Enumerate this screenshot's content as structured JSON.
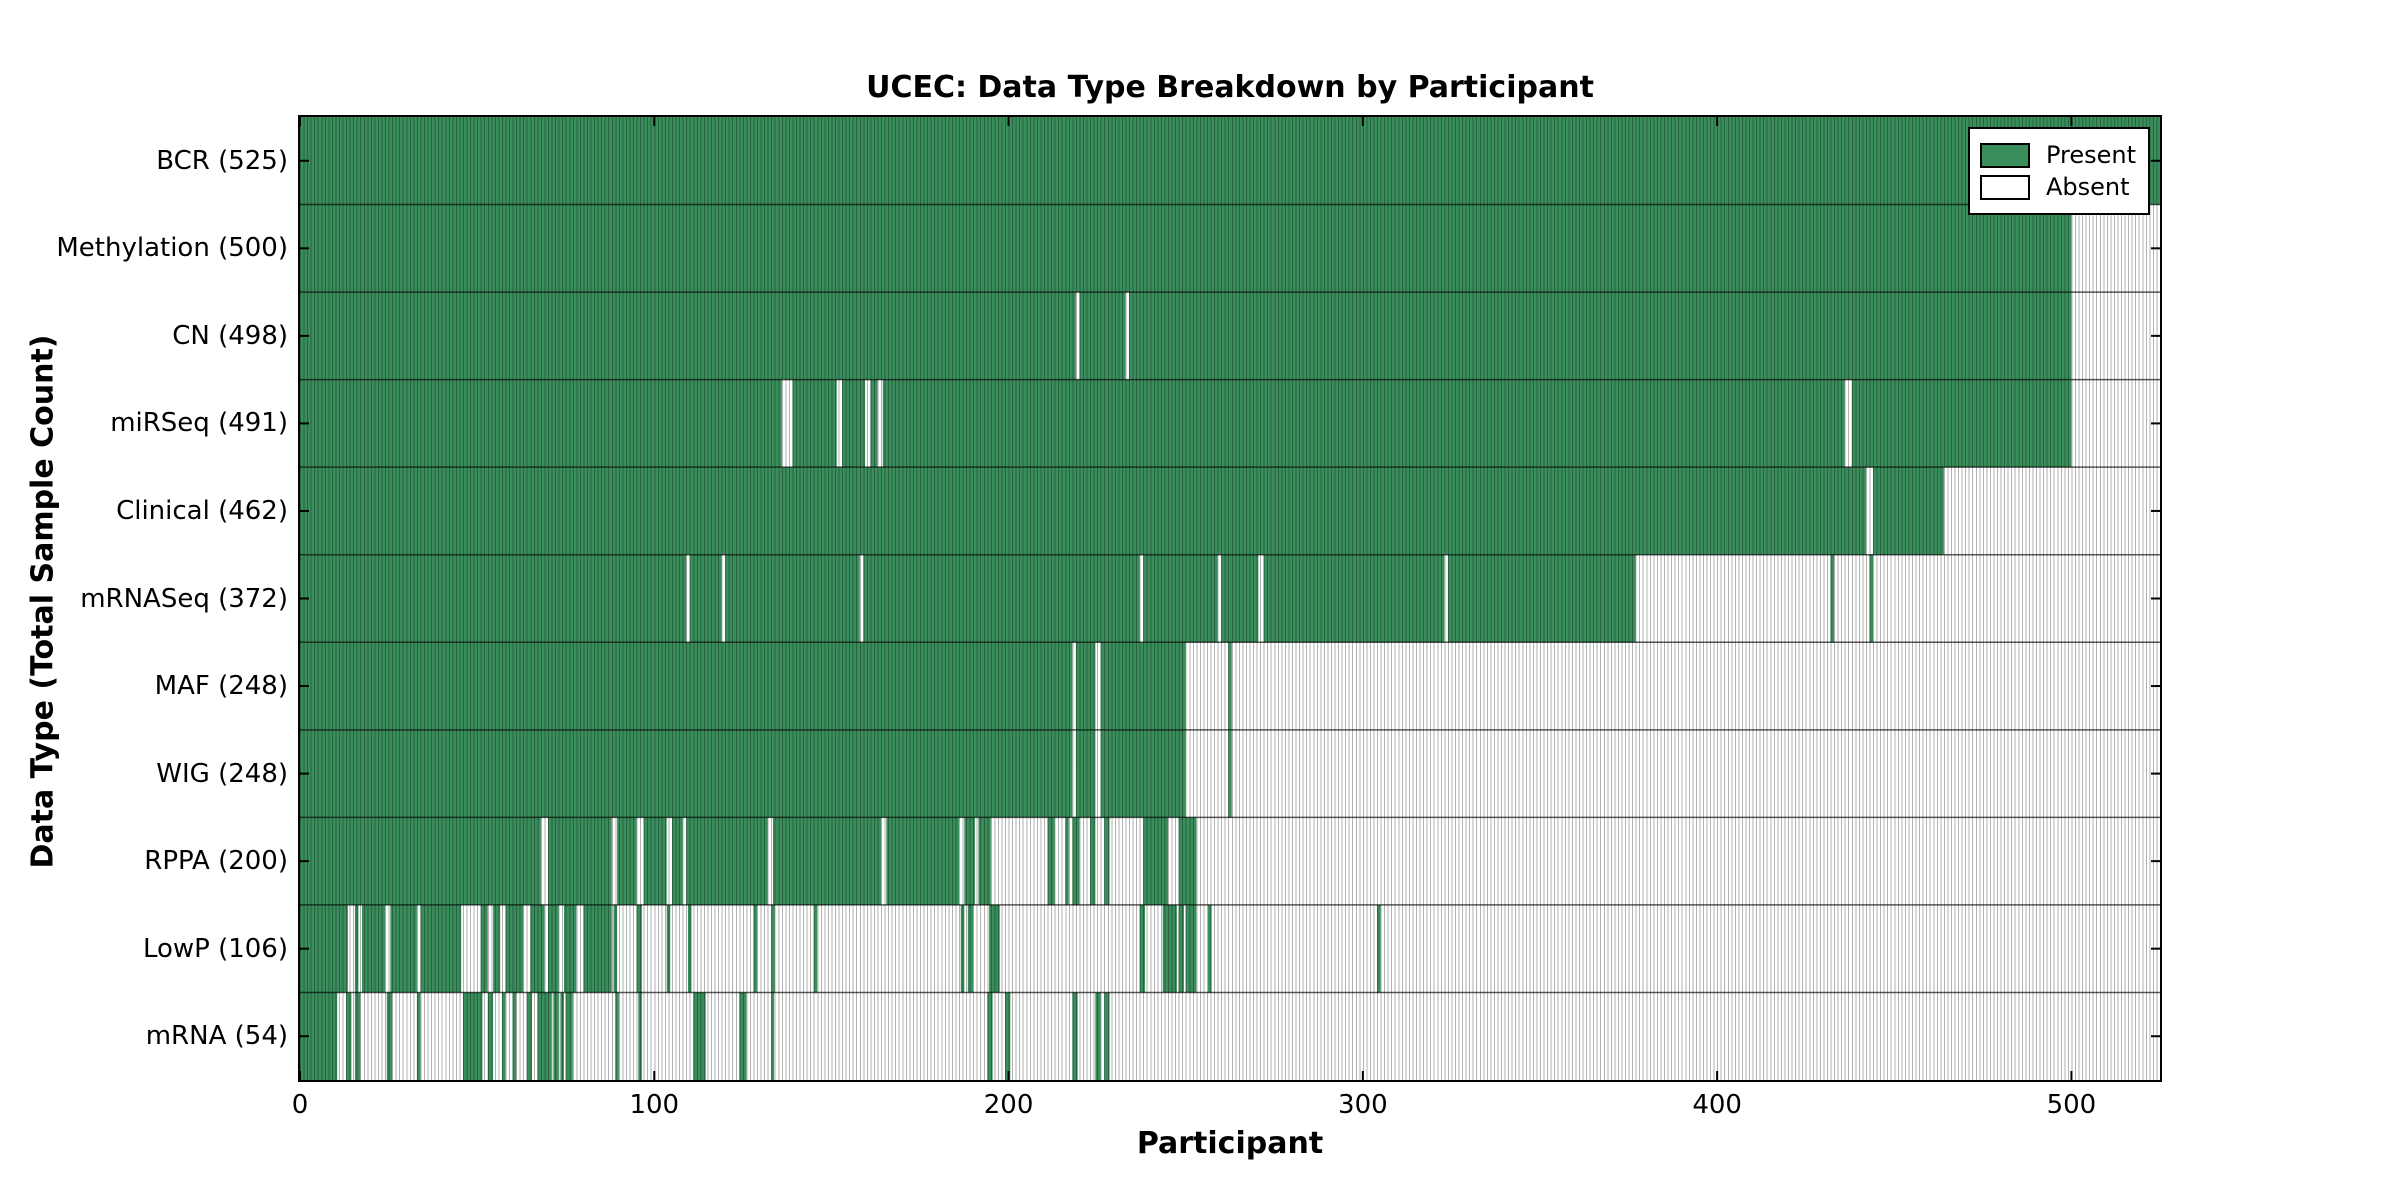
{
  "title": "UCEC: Data Type Breakdown by Participant",
  "xlabel": "Participant",
  "ylabel": "Data Type (Total Sample Count)",
  "legend": {
    "present_label": "Present",
    "absent_label": "Absent"
  },
  "colors": {
    "present": "#3a8e5c",
    "absent": "#ffffff",
    "stripe_line": "rgba(0,0,0,0.30)",
    "row_separator": "rgba(0,0,0,0.65)",
    "axis_border": "#000000",
    "tick": "#000000"
  },
  "chart_data": {
    "type": "heatmap",
    "subtype": "presence-absence-matrix",
    "title": "UCEC: Data Type Breakdown by Participant",
    "xlabel": "Participant",
    "ylabel": "Data Type (Total Sample Count)",
    "x_axis": {
      "range": [
        0,
        525
      ],
      "ticks": [
        0,
        100,
        200,
        300,
        400,
        500
      ]
    },
    "legend_entries": [
      {
        "label": "Present",
        "color": "#3a8e5c"
      },
      {
        "label": "Absent",
        "color": "#ffffff"
      }
    ],
    "legend_position": "upper right",
    "grid": false,
    "rows": [
      {
        "label": "BCR (525)",
        "name": "BCR",
        "count": 525,
        "present_ranges": [
          [
            0,
            525
          ]
        ]
      },
      {
        "label": "Methylation (500)",
        "name": "Methylation",
        "count": 500,
        "present_ranges": [
          [
            0,
            500
          ]
        ]
      },
      {
        "label": "CN (498)",
        "name": "CN",
        "count": 498,
        "present_ranges": [
          [
            0,
            219
          ],
          [
            220,
            233
          ],
          [
            234,
            500
          ]
        ]
      },
      {
        "label": "miRSeq (491)",
        "name": "miRSeq",
        "count": 491,
        "present_ranges": [
          [
            0,
            136
          ],
          [
            139,
            151.5
          ],
          [
            153,
            159.5
          ],
          [
            161,
            163
          ],
          [
            164.5,
            436
          ],
          [
            438,
            500
          ]
        ]
      },
      {
        "label": "Clinical (462)",
        "name": "Clinical",
        "count": 462,
        "present_ranges": [
          [
            0,
            442
          ],
          [
            444,
            464
          ]
        ]
      },
      {
        "label": "mRNASeq (372)",
        "name": "mRNASeq",
        "count": 372,
        "present_ranges": [
          [
            0,
            109
          ],
          [
            110,
            119
          ],
          [
            120,
            158
          ],
          [
            159,
            237
          ],
          [
            238,
            259
          ],
          [
            260,
            270.5
          ],
          [
            272,
            323
          ],
          [
            324,
            377
          ],
          [
            432,
            433
          ],
          [
            443,
            444
          ]
        ]
      },
      {
        "label": "MAF (248)",
        "name": "MAF",
        "count": 248,
        "present_ranges": [
          [
            0,
            218
          ],
          [
            219,
            224.5
          ],
          [
            226,
            250
          ],
          [
            262,
            263
          ]
        ]
      },
      {
        "label": "WIG (248)",
        "name": "WIG",
        "count": 248,
        "present_ranges": [
          [
            0,
            218
          ],
          [
            219,
            224.5
          ],
          [
            226,
            250
          ],
          [
            262,
            263
          ]
        ]
      },
      {
        "label": "RPPA (200)",
        "name": "RPPA",
        "count": 200,
        "present_ranges": [
          [
            0,
            68
          ],
          [
            70,
            88
          ],
          [
            89.5,
            95
          ],
          [
            97,
            103.5
          ],
          [
            105,
            108
          ],
          [
            109,
            132
          ],
          [
            133.5,
            164
          ],
          [
            165.5,
            186
          ],
          [
            187.5,
            190.5
          ],
          [
            191.5,
            195
          ],
          [
            211,
            213
          ],
          [
            216,
            217
          ],
          [
            218,
            220
          ],
          [
            223,
            224.5
          ],
          [
            227,
            228.5
          ],
          [
            238,
            245
          ],
          [
            248,
            253
          ]
        ]
      },
      {
        "label": "LowP (106)",
        "name": "LowP",
        "count": 106,
        "present_ranges": [
          [
            0,
            13.5
          ],
          [
            15.5,
            16.5
          ],
          [
            17.5,
            24
          ],
          [
            25.5,
            33
          ],
          [
            34,
            45.5
          ],
          [
            51,
            53
          ],
          [
            54.5,
            56.5
          ],
          [
            58,
            63
          ],
          [
            65,
            69
          ],
          [
            70,
            73
          ],
          [
            74.5,
            78
          ],
          [
            80,
            88
          ],
          [
            88.5,
            89.5
          ],
          [
            95,
            96.5
          ],
          [
            103.5,
            104.5
          ],
          [
            109.5,
            110.5
          ],
          [
            128,
            129
          ],
          [
            133,
            134
          ],
          [
            145,
            146
          ],
          [
            186.5,
            187.5
          ],
          [
            188.5,
            190
          ],
          [
            194.5,
            197.5
          ],
          [
            237,
            238.5
          ],
          [
            243.5,
            247.5
          ],
          [
            248,
            249.5
          ],
          [
            250,
            253
          ],
          [
            256.3,
            257.3
          ],
          [
            304,
            305
          ]
        ]
      },
      {
        "label": "mRNA (54)",
        "name": "mRNA",
        "count": 54,
        "present_ranges": [
          [
            0,
            10.5
          ],
          [
            13,
            14.5
          ],
          [
            15.5,
            17
          ],
          [
            24.5,
            26
          ],
          [
            33,
            34
          ],
          [
            46,
            51.5
          ],
          [
            53,
            54.5
          ],
          [
            57,
            58
          ],
          [
            60,
            61
          ],
          [
            64,
            65.5
          ],
          [
            67,
            71
          ],
          [
            71.5,
            73
          ],
          [
            73.5,
            74.5
          ],
          [
            75,
            77
          ],
          [
            89,
            90
          ],
          [
            95.5,
            96.5
          ],
          [
            111,
            114.5
          ],
          [
            124,
            126
          ],
          [
            133,
            133.8
          ],
          [
            194,
            195.5
          ],
          [
            199,
            200.5
          ],
          [
            218,
            219.5
          ],
          [
            224.5,
            226
          ],
          [
            227,
            228.5
          ]
        ]
      }
    ]
  }
}
